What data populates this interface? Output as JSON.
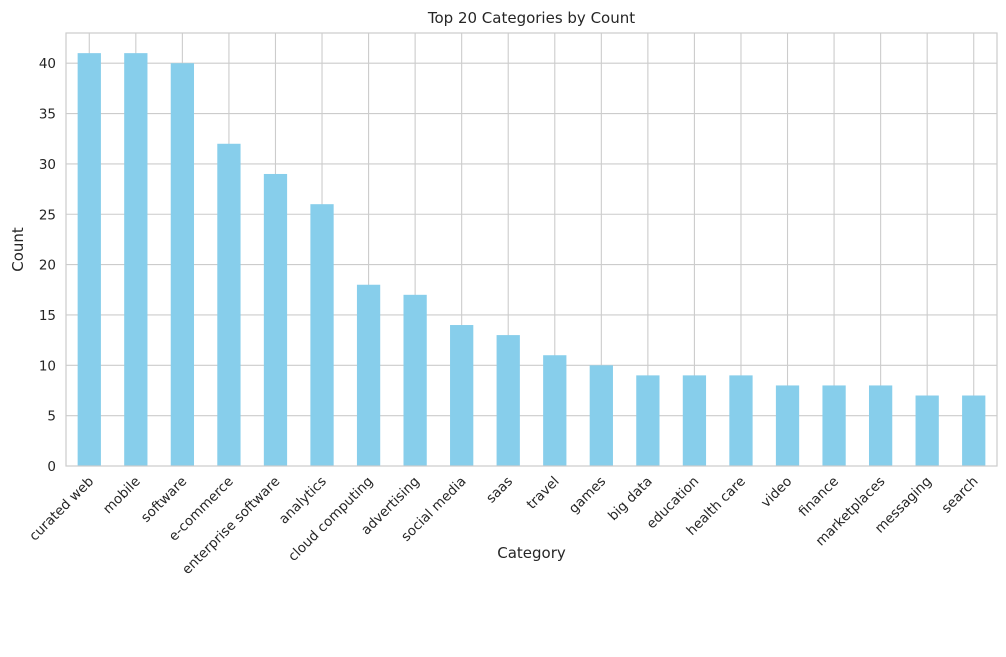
{
  "chart_data": {
    "type": "bar",
    "title": "Top 20 Categories by Count",
    "xlabel": "Category",
    "ylabel": "Count",
    "categories": [
      "curated web",
      "mobile",
      "software",
      "e-commerce",
      "enterprise software",
      "analytics",
      "cloud computing",
      "advertising",
      "social media",
      "saas",
      "travel",
      "games",
      "big data",
      "education",
      "health care",
      "video",
      "finance",
      "marketplaces",
      "messaging",
      "search"
    ],
    "values": [
      41,
      41,
      40,
      32,
      29,
      26,
      18,
      17,
      14,
      13,
      11,
      10,
      9,
      9,
      9,
      8,
      8,
      8,
      7,
      7
    ],
    "ylim": [
      0,
      43
    ],
    "yticks": [
      "0",
      "5",
      "10",
      "15",
      "20",
      "25",
      "30",
      "35",
      "40"
    ],
    "grid": true,
    "bar_color": "#87CEEB",
    "grid_color": "#cccccc"
  }
}
